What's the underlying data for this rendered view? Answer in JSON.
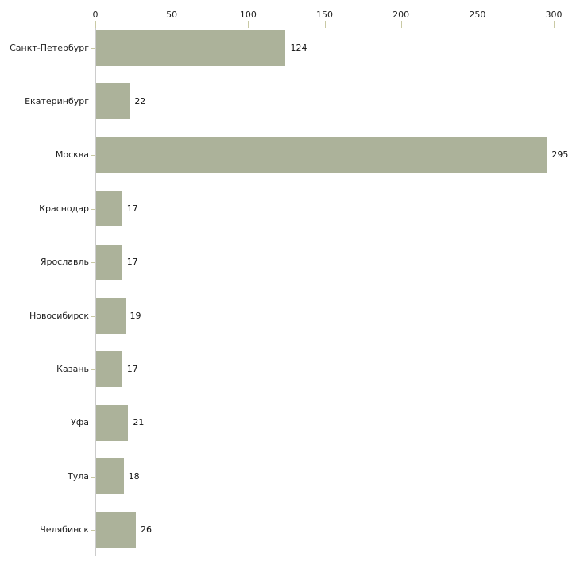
{
  "chart_data": {
    "type": "bar",
    "orientation": "horizontal",
    "title": "",
    "xlabel": "",
    "ylabel": "",
    "categories": [
      "Санкт-Петербург",
      "Екатеринбург",
      "Москва",
      "Краснодар",
      "Ярославль",
      "Новосибирск",
      "Казань",
      "Уфа",
      "Тула",
      "Челябинск"
    ],
    "values": [
      124,
      22,
      295,
      17,
      17,
      19,
      17,
      21,
      18,
      26
    ],
    "value_labels": [
      "124",
      "22",
      "295",
      "17",
      "17",
      "19",
      "17",
      "21",
      "18",
      "26"
    ],
    "xlim": [
      0,
      300
    ],
    "x_ticks": [
      0,
      50,
      100,
      150,
      200,
      250,
      300
    ],
    "x_tick_labels": [
      "0",
      "50",
      "100",
      "150",
      "200",
      "250",
      "300"
    ],
    "grid": false,
    "legend": "none",
    "axis_position": "top-left",
    "colors": {
      "bar_fill": "#acb29a",
      "axis_line": "#cccccc",
      "tick_mark": "#c9c9a4",
      "text": "#222222",
      "background": "#ffffff"
    }
  }
}
